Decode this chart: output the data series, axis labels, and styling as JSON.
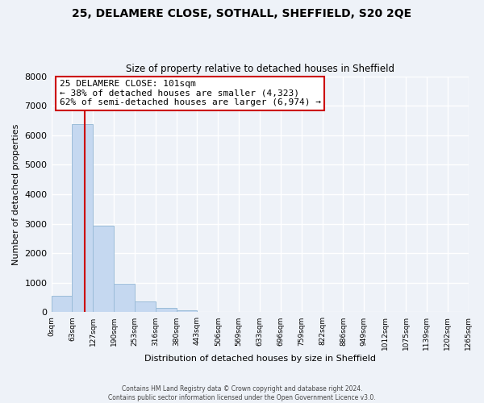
{
  "title": "25, DELAMERE CLOSE, SOTHALL, SHEFFIELD, S20 2QE",
  "subtitle": "Size of property relative to detached houses in Sheffield",
  "xlabel": "Distribution of detached houses by size in Sheffield",
  "ylabel": "Number of detached properties",
  "bin_labels": [
    "0sqm",
    "63sqm",
    "127sqm",
    "190sqm",
    "253sqm",
    "316sqm",
    "380sqm",
    "443sqm",
    "506sqm",
    "569sqm",
    "633sqm",
    "696sqm",
    "759sqm",
    "822sqm",
    "886sqm",
    "949sqm",
    "1012sqm",
    "1075sqm",
    "1139sqm",
    "1202sqm",
    "1265sqm"
  ],
  "bar_heights": [
    560,
    6380,
    2930,
    980,
    370,
    160,
    60,
    0,
    0,
    0,
    0,
    0,
    0,
    0,
    0,
    0,
    0,
    0,
    0,
    0
  ],
  "bar_color": "#c5d8f0",
  "bar_edge_color": "#9bbcd8",
  "ylim": [
    0,
    8000
  ],
  "yticks": [
    0,
    1000,
    2000,
    3000,
    4000,
    5000,
    6000,
    7000,
    8000
  ],
  "property_line_x": 101,
  "property_line_color": "#cc0000",
  "annotation_line1": "25 DELAMERE CLOSE: 101sqm",
  "annotation_line2": "← 38% of detached houses are smaller (4,323)",
  "annotation_line3": "62% of semi-detached houses are larger (6,974) →",
  "annotation_box_color": "#ffffff",
  "annotation_box_edge_color": "#cc0000",
  "footer_line1": "Contains HM Land Registry data © Crown copyright and database right 2024.",
  "footer_line2": "Contains public sector information licensed under the Open Government Licence v3.0.",
  "background_color": "#eef2f8",
  "grid_color": "#ffffff",
  "bin_width": 63
}
